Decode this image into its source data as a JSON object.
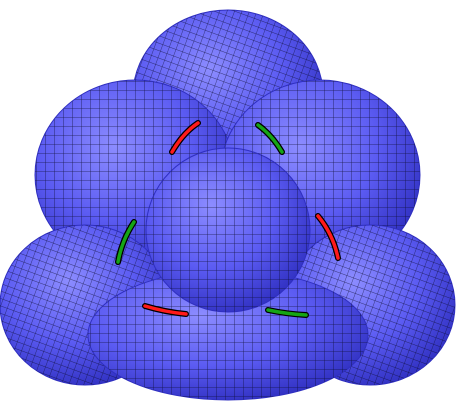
{
  "figure": {
    "kind": "3D rendered mesh surface",
    "colors": {
      "surface": "#5b5bf2",
      "surface_shadow": "#2f2fc0",
      "surface_highlight": "#8c8cff",
      "mesh_lines": "#0b0b2e",
      "marker_red": "#ff1a1a",
      "marker_green": "#16a516",
      "background": "#ffffff"
    },
    "lobes": [
      {
        "name": "top-lobe"
      },
      {
        "name": "upper-left-lobe"
      },
      {
        "name": "upper-right-lobe"
      },
      {
        "name": "left-lobe"
      },
      {
        "name": "right-lobe"
      },
      {
        "name": "bottom-lobe"
      },
      {
        "name": "center-lobe"
      }
    ],
    "markers": [
      {
        "name": "red-arc-top-left",
        "color": "red"
      },
      {
        "name": "green-arc-top-right",
        "color": "green"
      },
      {
        "name": "green-arc-left",
        "color": "green"
      },
      {
        "name": "red-arc-right",
        "color": "red"
      },
      {
        "name": "red-arc-bottom-left",
        "color": "red"
      },
      {
        "name": "green-arc-bottom-right",
        "color": "green"
      }
    ]
  }
}
